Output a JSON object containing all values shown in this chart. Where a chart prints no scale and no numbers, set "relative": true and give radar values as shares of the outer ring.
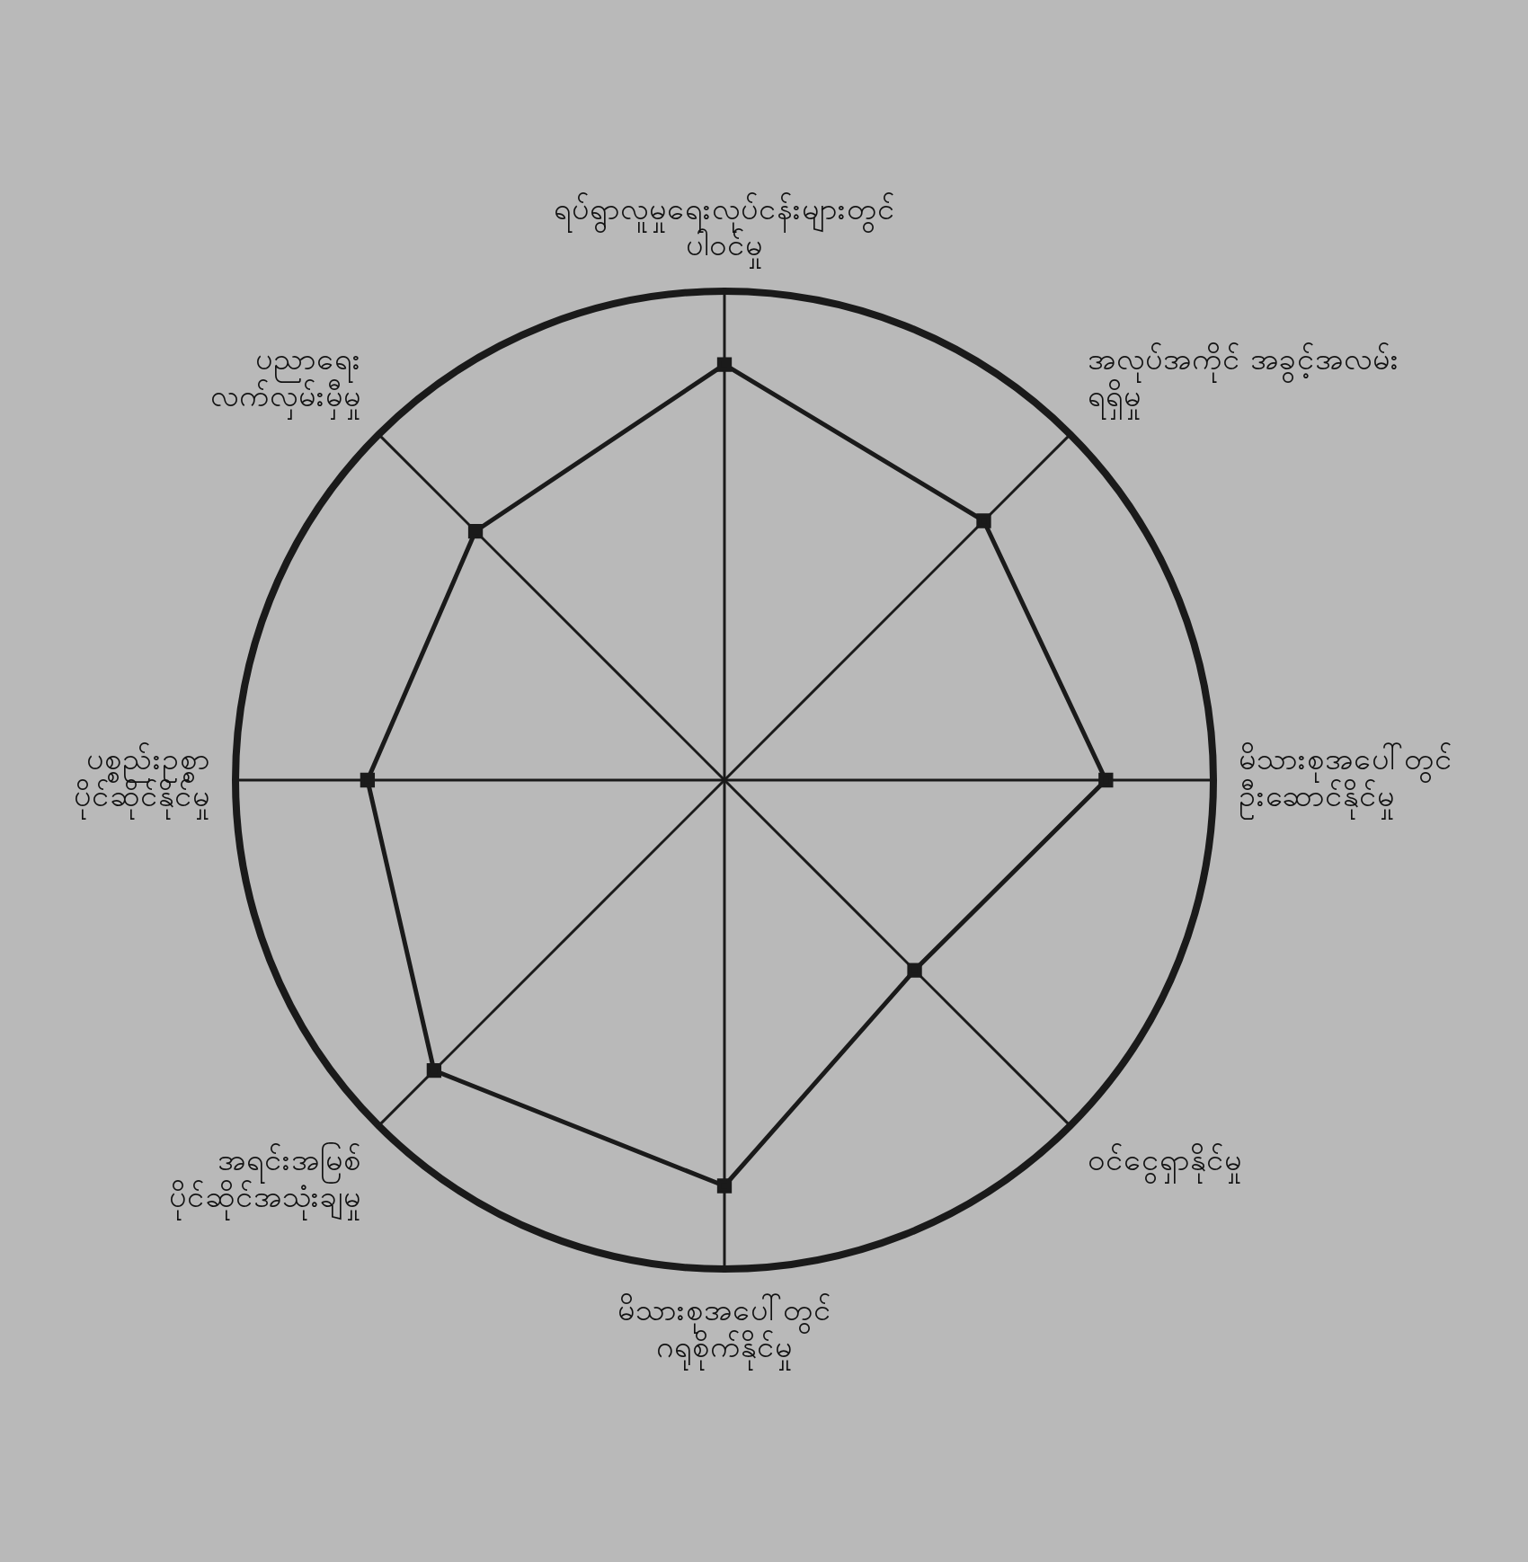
{
  "chart_data": {
    "type": "radar",
    "relative": true,
    "marker": "square",
    "grid": true,
    "legend": false,
    "categories": [
      "ရပ်ရွာလူမှုရေးလုပ်ငန်းများတွင်\nပါဝင်မှု",
      "အလုပ်အကိုင် အခွင့်အလမ်း\nရရှိမှု",
      "မိသားစုအပေါ်တွင်\nဦးဆောင်နိုင်မှု",
      "ဝင်ငွေရှာနိုင်မှု",
      "မိသားစုအပေါ်တွင်\nဂရုစိုက်နိုင်မှု",
      "အရင်းအမြစ်\nပိုင်ဆိုင်အသုံးချမှု",
      "ပစ္စည်းဥစ္စာ\nပိုင်ဆိုင်နိုင်မှု",
      "ပညာရေး\nလက်လှမ်းမှီမှု"
    ],
    "series": [
      {
        "color": "#1a1a1a",
        "values": [
          0.85,
          0.75,
          0.78,
          0.55,
          0.83,
          0.84,
          0.73,
          0.72
        ]
      }
    ]
  }
}
